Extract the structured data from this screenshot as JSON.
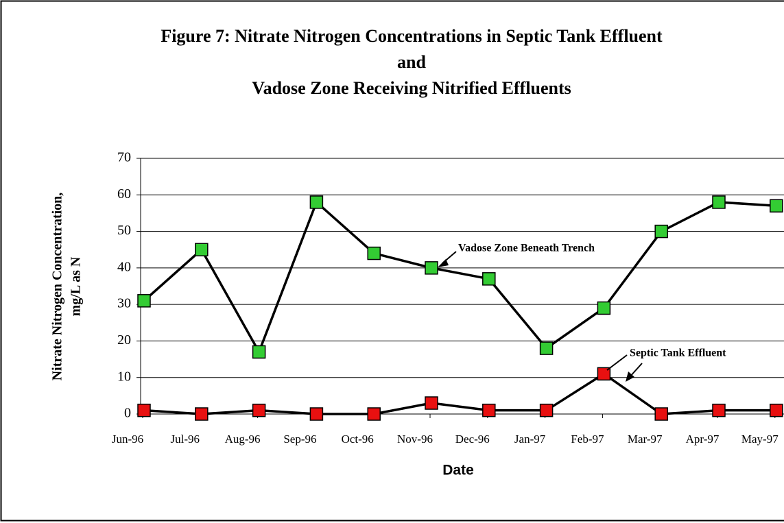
{
  "chart_data": {
    "type": "line",
    "title": [
      "Figure 7: Nitrate Nitrogen Concentrations in Septic Tank Effluent",
      "and",
      "Vadose Zone Receiving Nitrified Effluents"
    ],
    "x_label": "Date",
    "y_label": [
      "Nitrate Nitrogen Concentration,",
      "mg/L as N"
    ],
    "categories": [
      "Jun-96",
      "Jul-96",
      "Aug-96",
      "Sep-96",
      "Oct-96",
      "Nov-96",
      "Dec-96",
      "Jan-97",
      "Feb-97",
      "Mar-97",
      "Apr-97",
      "May-97"
    ],
    "series": [
      {
        "name": "Vadose Zone Beneath Trench",
        "color": "#33cc33",
        "values": [
          31,
          45,
          17,
          58,
          44,
          40,
          37,
          18,
          29,
          50,
          58,
          57
        ]
      },
      {
        "name": "Septic Tank Effluent",
        "color": "#e81010",
        "values": [
          1,
          0,
          1,
          0,
          0,
          3,
          1,
          1,
          11,
          0,
          1,
          1
        ]
      }
    ],
    "ylim": [
      0,
      70
    ],
    "yticks": [
      0,
      10,
      20,
      30,
      40,
      50,
      60,
      70
    ],
    "grid": true
  }
}
